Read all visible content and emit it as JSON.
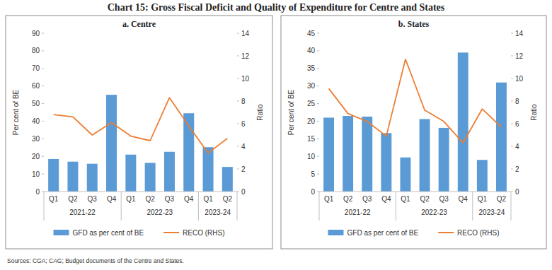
{
  "title": "Chart 15: Gross Fiscal Deficit and Quality of Expenditure for Centre and States",
  "source": "Sources: CGA; CAG; Budget documents of the Centre and States.",
  "chart_data": [
    {
      "type": "bar",
      "title": "a. Centre",
      "categories": [
        "Q1",
        "Q2",
        "Q3",
        "Q4",
        "Q1",
        "Q2",
        "Q3",
        "Q4",
        "Q1",
        "Q2"
      ],
      "category_groups": [
        {
          "label": "2021-22",
          "size": 4
        },
        {
          "label": "2022-23",
          "size": 4
        },
        {
          "label": "2023-24",
          "size": 2
        }
      ],
      "series": [
        {
          "name": "GFD as per cent of BE",
          "type": "bar",
          "color": "#5b9bd5",
          "values": [
            18.5,
            17,
            15.8,
            55,
            21,
            16.3,
            22.6,
            44.5,
            25.2,
            14
          ]
        },
        {
          "name": "RECO (RHS)",
          "type": "line",
          "color": "#ed7d31",
          "axis": "y2",
          "values": [
            6.8,
            6.6,
            5.0,
            6.1,
            4.9,
            4.5,
            8.3,
            5.8,
            3.4,
            4.7
          ]
        }
      ],
      "ylabel": "Per cent of BE",
      "y2label": "Ratio",
      "ylim": [
        0,
        90
      ],
      "yticks": [
        0,
        10,
        20,
        30,
        40,
        50,
        60,
        70,
        80,
        90
      ],
      "y2lim": [
        0,
        14
      ],
      "y2ticks": [
        0,
        2,
        4,
        6,
        8,
        10,
        12,
        14
      ],
      "grid": false,
      "legend": "bottom"
    },
    {
      "type": "bar",
      "title": "b. States",
      "categories": [
        "Q1",
        "Q2",
        "Q3",
        "Q4",
        "Q1",
        "Q2",
        "Q3",
        "Q4",
        "Q1",
        "Q2"
      ],
      "category_groups": [
        {
          "label": "2021-22",
          "size": 4
        },
        {
          "label": "2022-23",
          "size": 4
        },
        {
          "label": "2023-24",
          "size": 2
        }
      ],
      "series": [
        {
          "name": "GFD as per cent of BE",
          "type": "bar",
          "color": "#5b9bd5",
          "values": [
            21,
            21.5,
            21.3,
            16.6,
            9.7,
            20.6,
            18.1,
            39.5,
            9.0,
            31.0
          ]
        },
        {
          "name": "RECO (RHS)",
          "type": "line",
          "color": "#ed7d31",
          "axis": "y2",
          "values": [
            9.1,
            6.9,
            6.2,
            4.9,
            11.7,
            7.2,
            6.2,
            4.3,
            7.3,
            5.7
          ]
        }
      ],
      "ylabel": "Per cent of BE",
      "y2label": "Ratio",
      "ylim": [
        0,
        45
      ],
      "yticks": [
        0,
        5,
        10,
        15,
        20,
        25,
        30,
        35,
        40,
        45
      ],
      "y2lim": [
        0,
        14
      ],
      "y2ticks": [
        0,
        2,
        4,
        6,
        8,
        10,
        12,
        14
      ],
      "grid": false,
      "legend": "bottom"
    }
  ]
}
